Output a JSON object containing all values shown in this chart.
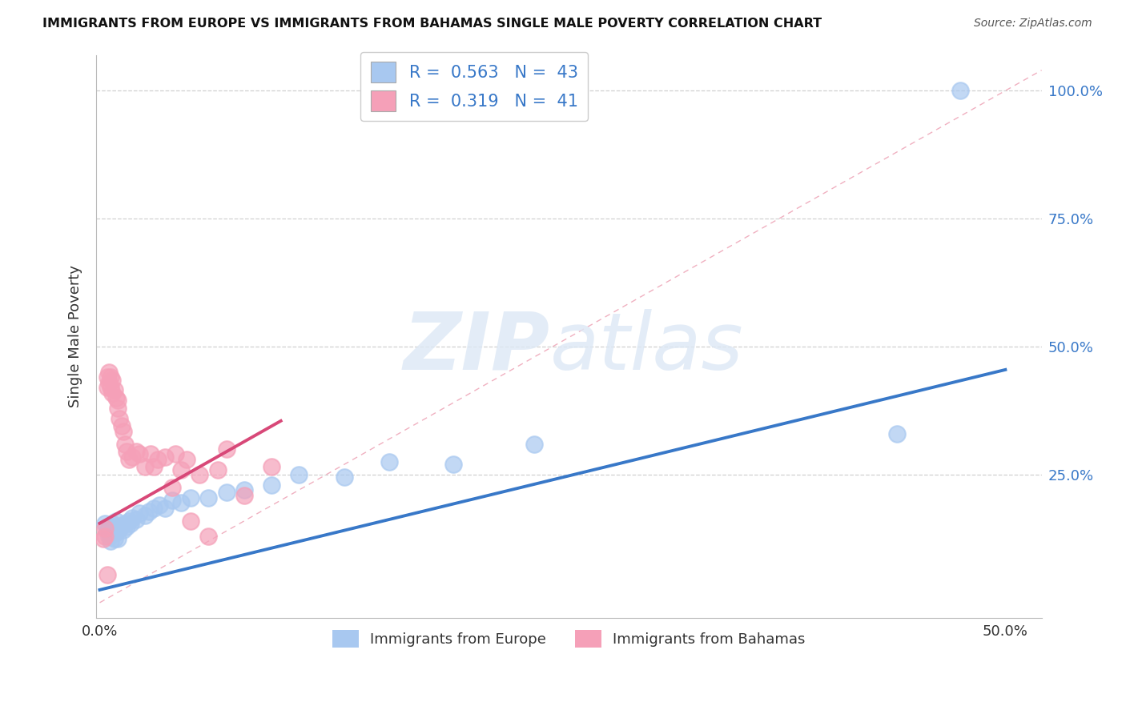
{
  "title": "IMMIGRANTS FROM EUROPE VS IMMIGRANTS FROM BAHAMAS SINGLE MALE POVERTY CORRELATION CHART",
  "source": "Source: ZipAtlas.com",
  "ylabel": "Single Male Poverty",
  "xlim": [
    -0.002,
    0.52
  ],
  "ylim": [
    -0.03,
    1.07
  ],
  "ytick_positions": [
    0.0,
    0.25,
    0.5,
    0.75,
    1.0
  ],
  "ytick_labels": [
    "",
    "25.0%",
    "50.0%",
    "75.0%",
    "100.0%"
  ],
  "xtick_positions": [
    0.0,
    0.1,
    0.2,
    0.3,
    0.4,
    0.5
  ],
  "xtick_labels": [
    "0.0%",
    "",
    "",
    "",
    "",
    "50.0%"
  ],
  "europe_color": "#a8c8f0",
  "bahamas_color": "#f5a0b8",
  "europe_line_color": "#3878c8",
  "bahamas_line_color": "#d84878",
  "diagonal_color": "#f0b0c0",
  "legend_R1": "0.563",
  "legend_N1": "43",
  "legend_R2": "0.319",
  "legend_N2": "41",
  "europe_scatter_x": [
    0.003,
    0.004,
    0.005,
    0.005,
    0.006,
    0.006,
    0.007,
    0.007,
    0.008,
    0.008,
    0.009,
    0.009,
    0.01,
    0.01,
    0.011,
    0.012,
    0.013,
    0.014,
    0.015,
    0.016,
    0.017,
    0.018,
    0.02,
    0.022,
    0.025,
    0.027,
    0.03,
    0.033,
    0.036,
    0.04,
    0.045,
    0.05,
    0.06,
    0.07,
    0.08,
    0.095,
    0.11,
    0.135,
    0.16,
    0.195,
    0.24,
    0.44,
    0.475
  ],
  "europe_scatter_y": [
    0.155,
    0.14,
    0.13,
    0.145,
    0.12,
    0.135,
    0.14,
    0.155,
    0.125,
    0.148,
    0.138,
    0.16,
    0.125,
    0.142,
    0.145,
    0.15,
    0.142,
    0.155,
    0.148,
    0.16,
    0.155,
    0.165,
    0.162,
    0.175,
    0.17,
    0.178,
    0.185,
    0.19,
    0.185,
    0.2,
    0.195,
    0.205,
    0.205,
    0.215,
    0.22,
    0.23,
    0.25,
    0.245,
    0.275,
    0.27,
    0.31,
    0.33,
    1.0
  ],
  "bahamas_scatter_x": [
    0.002,
    0.003,
    0.003,
    0.004,
    0.004,
    0.005,
    0.005,
    0.006,
    0.006,
    0.007,
    0.007,
    0.008,
    0.009,
    0.01,
    0.01,
    0.011,
    0.012,
    0.013,
    0.014,
    0.015,
    0.016,
    0.018,
    0.02,
    0.022,
    0.025,
    0.028,
    0.03,
    0.032,
    0.036,
    0.04,
    0.042,
    0.045,
    0.048,
    0.05,
    0.055,
    0.06,
    0.065,
    0.07,
    0.08,
    0.095,
    0.004
  ],
  "bahamas_scatter_y": [
    0.125,
    0.13,
    0.145,
    0.42,
    0.44,
    0.43,
    0.45,
    0.44,
    0.42,
    0.435,
    0.41,
    0.415,
    0.4,
    0.38,
    0.395,
    0.36,
    0.345,
    0.335,
    0.31,
    0.295,
    0.28,
    0.285,
    0.295,
    0.29,
    0.265,
    0.29,
    0.265,
    0.28,
    0.285,
    0.225,
    0.29,
    0.26,
    0.28,
    0.16,
    0.25,
    0.13,
    0.26,
    0.3,
    0.21,
    0.265,
    0.055
  ],
  "europe_trend_x": [
    0.0,
    0.5
  ],
  "europe_trend_y": [
    0.025,
    0.455
  ],
  "bahamas_trend_x": [
    0.0,
    0.1
  ],
  "bahamas_trend_y": [
    0.155,
    0.355
  ]
}
